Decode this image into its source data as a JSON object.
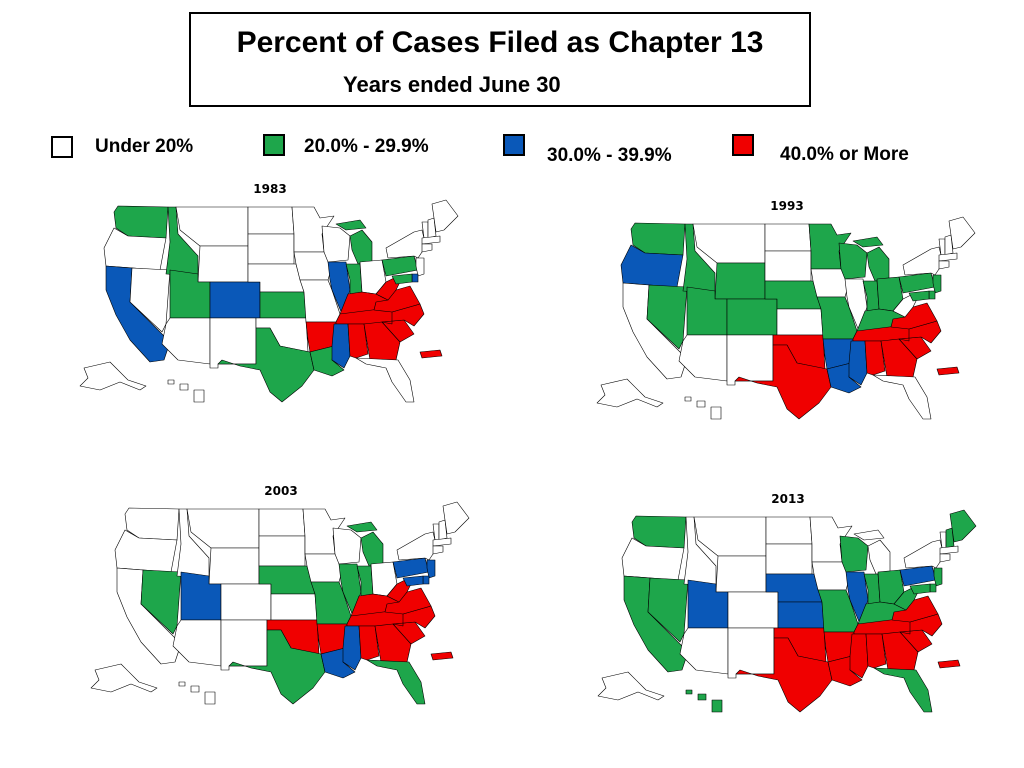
{
  "title": "Percent of Cases Filed as Chapter 13",
  "subtitle": "Years ended June 30",
  "colors": {
    "under20": "#ffffff",
    "r20": "#1ea64b",
    "r30": "#0a58b8",
    "r40": "#f00000",
    "outline": "#000000"
  },
  "legend": [
    {
      "key": "under20",
      "label": "Under 20%"
    },
    {
      "key": "r20",
      "label": "20.0% - 29.9%"
    },
    {
      "key": "r30",
      "label": "30.0% - 39.9%"
    },
    {
      "key": "r40",
      "label": "40.0% or More"
    }
  ],
  "maps": [
    {
      "year": "1983",
      "categories": {
        "WA": "r20",
        "OR": "w",
        "CA": "r30",
        "NV": "w",
        "ID": "r20",
        "MT": "w",
        "WY": "w",
        "UT": "r20",
        "CO": "r30",
        "AZ": "w",
        "NM": "w",
        "ND": "w",
        "SD": "w",
        "NE": "w",
        "KS": "r20",
        "OK": "w",
        "TX": "r20",
        "MN": "w",
        "IA": "w",
        "MO": "w",
        "AR": "r40",
        "LA": "r20",
        "WI": "w",
        "IL": "r30",
        "MI": "r20",
        "IN": "r20",
        "OH": "w",
        "KY": "r40",
        "TN": "r40",
        "MS": "r30",
        "AL": "r40",
        "GA": "r40",
        "FL": "w",
        "SC": "r40",
        "NC": "r40",
        "VA": "r40",
        "WV": "r40",
        "PA": "r20",
        "NY": "w",
        "VT": "w",
        "NH": "w",
        "ME": "w",
        "MA": "w",
        "CT": "w",
        "NJ": "w",
        "DE": "r30",
        "MD": "r20",
        "AK": "w",
        "HI": "w",
        "PR": "r40"
      }
    },
    {
      "year": "1993",
      "categories": {
        "WA": "r20",
        "OR": "r30",
        "CA": "w",
        "NV": "r20",
        "ID": "r20",
        "MT": "w",
        "WY": "r20",
        "UT": "r20",
        "CO": "r20",
        "AZ": "w",
        "NM": "w",
        "ND": "w",
        "SD": "w",
        "NE": "r20",
        "KS": "w",
        "OK": "r40",
        "TX": "r40",
        "MN": "r20",
        "IA": "w",
        "MO": "r20",
        "AR": "r30",
        "LA": "r30",
        "WI": "r20",
        "IL": "w",
        "MI": "r20",
        "IN": "r20",
        "OH": "r20",
        "KY": "r20",
        "TN": "r40",
        "MS": "r30",
        "AL": "r40",
        "GA": "r40",
        "FL": "w",
        "SC": "r40",
        "NC": "r40",
        "VA": "r40",
        "WV": "w",
        "PA": "r20",
        "NY": "w",
        "VT": "w",
        "NH": "w",
        "ME": "w",
        "MA": "w",
        "CT": "w",
        "NJ": "r20",
        "DE": "r20",
        "MD": "r20",
        "AK": "w",
        "HI": "w",
        "PR": "r40"
      }
    },
    {
      "year": "2003",
      "categories": {
        "WA": "w",
        "OR": "w",
        "CA": "w",
        "NV": "r20",
        "ID": "w",
        "MT": "w",
        "WY": "w",
        "UT": "r30",
        "CO": "w",
        "AZ": "w",
        "NM": "w",
        "ND": "w",
        "SD": "w",
        "NE": "r20",
        "KS": "w",
        "OK": "r40",
        "TX": "r20",
        "MN": "w",
        "IA": "w",
        "MO": "r20",
        "AR": "r40",
        "LA": "r30",
        "WI": "w",
        "IL": "r20",
        "MI": "r20",
        "IN": "r20",
        "OH": "w",
        "KY": "r40",
        "TN": "r40",
        "MS": "r30",
        "AL": "r40",
        "GA": "r40",
        "FL": "r20",
        "SC": "r40",
        "NC": "r40",
        "VA": "r40",
        "WV": "r40",
        "PA": "r30",
        "NY": "w",
        "VT": "w",
        "NH": "w",
        "ME": "w",
        "MA": "w",
        "CT": "w",
        "NJ": "r30",
        "DE": "r30",
        "MD": "r30",
        "AK": "w",
        "HI": "w",
        "PR": "r40"
      }
    },
    {
      "year": "2013",
      "categories": {
        "WA": "r20",
        "OR": "w",
        "CA": "r20",
        "NV": "r20",
        "ID": "w",
        "MT": "w",
        "WY": "w",
        "UT": "r30",
        "CO": "w",
        "AZ": "w",
        "NM": "w",
        "ND": "w",
        "SD": "w",
        "NE": "r30",
        "KS": "r30",
        "OK": "r40",
        "TX": "r40",
        "MN": "w",
        "IA": "w",
        "MO": "r20",
        "AR": "r40",
        "LA": "r40",
        "WI": "r20",
        "IL": "r30",
        "MI": "w",
        "IN": "r20",
        "OH": "r20",
        "KY": "r20",
        "TN": "r40",
        "MS": "r40",
        "AL": "r40",
        "GA": "r40",
        "FL": "r20",
        "SC": "r40",
        "NC": "r40",
        "VA": "r40",
        "WV": "r20",
        "PA": "r30",
        "NY": "w",
        "VT": "w",
        "NH": "r20",
        "ME": "r20",
        "MA": "w",
        "CT": "w",
        "NJ": "r20",
        "DE": "r20",
        "MD": "r20",
        "AK": "w",
        "HI": "r20",
        "PR": "r40"
      }
    }
  ]
}
